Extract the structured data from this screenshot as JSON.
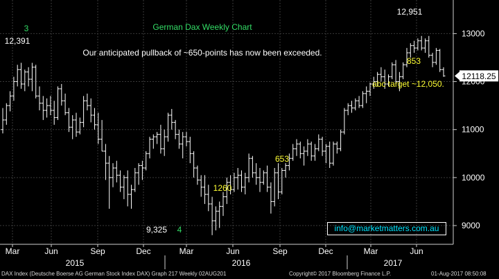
{
  "chart_data": {
    "type": "ohlc",
    "title": "German Dax Weekly Chart",
    "subtitle": "Our anticipated pullback of ~650-points has now been exceeded.",
    "ylim": [
      8400,
      13400
    ],
    "y_ticks": [
      9000,
      10000,
      11000,
      12000,
      13000
    ],
    "y_tick_labels": [
      "9000",
      "10000",
      "11000",
      "12000",
      "13000"
    ],
    "x_month_labels": [
      "Mar",
      "Jun",
      "Sep",
      "Dec",
      "Mar",
      "Jun",
      "Sep",
      "Dec",
      "Mar",
      "Jun"
    ],
    "x_year_labels": [
      "2015",
      "2016",
      "2017"
    ],
    "last_price": "12118.25",
    "grid": true,
    "bar_color": "#ffffff",
    "series": [
      {
        "values": [
          [
            11000,
            11450,
            10920,
            11200
          ],
          [
            11200,
            11550,
            11100,
            11500
          ],
          [
            11500,
            11800,
            11380,
            11700
          ],
          [
            11700,
            12100,
            11600,
            12000
          ],
          [
            12000,
            12350,
            11900,
            12250
          ],
          [
            12250,
            12391,
            11850,
            11950
          ],
          [
            11950,
            12250,
            11800,
            12200
          ],
          [
            12200,
            12300,
            11900,
            12050
          ],
          [
            12050,
            12391,
            11800,
            12300
          ],
          [
            12300,
            12350,
            11650,
            11700
          ],
          [
            11700,
            11900,
            11400,
            11550
          ],
          [
            11550,
            11700,
            11200,
            11400
          ],
          [
            11400,
            11650,
            11250,
            11500
          ],
          [
            11500,
            11700,
            11300,
            11400
          ],
          [
            11400,
            11600,
            11100,
            11250
          ],
          [
            11250,
            11900,
            11200,
            11850
          ],
          [
            11850,
            11950,
            11500,
            11600
          ],
          [
            11600,
            11750,
            11300,
            11350
          ],
          [
            11350,
            11450,
            10950,
            11050
          ],
          [
            11050,
            11300,
            10800,
            11200
          ],
          [
            11200,
            11350,
            10850,
            10950
          ],
          [
            10950,
            11250,
            10900,
            11150
          ],
          [
            11150,
            11700,
            11050,
            11600
          ],
          [
            11600,
            11750,
            11400,
            11500
          ],
          [
            11500,
            11650,
            11150,
            11300
          ],
          [
            11300,
            11450,
            11000,
            11100
          ],
          [
            11100,
            11350,
            10700,
            10800
          ],
          [
            10800,
            11200,
            10550,
            10550
          ],
          [
            10550,
            10700,
            9950,
            10300
          ],
          [
            10300,
            10450,
            9350,
            10000
          ],
          [
            10000,
            10300,
            9800,
            10200
          ],
          [
            10200,
            10350,
            9900,
            10050
          ],
          [
            10050,
            10150,
            9700,
            9800
          ],
          [
            9800,
            10050,
            9550,
            10000
          ],
          [
            10000,
            10150,
            9400,
            9650
          ],
          [
            9650,
            9850,
            9350,
            9750
          ],
          [
            9750,
            10200,
            9700,
            10100
          ],
          [
            10100,
            10300,
            9850,
            10250
          ],
          [
            10250,
            10350,
            9950,
            10200
          ],
          [
            10200,
            10550,
            10150,
            10500
          ],
          [
            10500,
            10850,
            10400,
            10800
          ],
          [
            10800,
            10900,
            10600,
            10850
          ],
          [
            10850,
            10950,
            10700,
            10900
          ],
          [
            10900,
            11100,
            10500,
            10600
          ],
          [
            10600,
            11000,
            10450,
            10850
          ],
          [
            10850,
            11350,
            10750,
            11300
          ],
          [
            11300,
            11430,
            11000,
            11150
          ],
          [
            11150,
            11200,
            10800,
            10900
          ],
          [
            10900,
            11000,
            10600,
            10700
          ],
          [
            10700,
            10950,
            10400,
            10850
          ],
          [
            10850,
            10950,
            10650,
            10750
          ],
          [
            10750,
            10850,
            10300,
            10500
          ],
          [
            10500,
            10550,
            10000,
            10200
          ],
          [
            10200,
            10250,
            9850,
            9950
          ],
          [
            9950,
            10050,
            9600,
            9800
          ],
          [
            9800,
            10050,
            9450,
            9650
          ],
          [
            9650,
            9850,
            9300,
            9450
          ],
          [
            9450,
            9600,
            8800,
            9100
          ],
          [
            9100,
            9400,
            8900,
            9300
          ],
          [
            9300,
            9500,
            8950,
            9400
          ],
          [
            9400,
            9700,
            9200,
            9600
          ],
          [
            9600,
            10000,
            9450,
            9900
          ],
          [
            9900,
            10050,
            9650,
            9750
          ],
          [
            9750,
            10100,
            9700,
            10000
          ],
          [
            10000,
            10200,
            9750,
            10050
          ],
          [
            10050,
            10150,
            9700,
            9800
          ],
          [
            9800,
            10100,
            9650,
            10000
          ],
          [
            10000,
            10500,
            9900,
            10400
          ],
          [
            10400,
            10450,
            10000,
            10100
          ],
          [
            10100,
            10300,
            9850,
            10000
          ],
          [
            10000,
            10200,
            9700,
            9900
          ],
          [
            9900,
            10150,
            9850,
            10100
          ],
          [
            10100,
            10250,
            9700,
            9800
          ],
          [
            9800,
            9900,
            9250,
            9500
          ],
          [
            9500,
            10200,
            9400,
            10100
          ],
          [
            10100,
            10300,
            9550,
            9700
          ],
          [
            9700,
            10200,
            9650,
            10150
          ],
          [
            10150,
            10300,
            10000,
            10250
          ],
          [
            10250,
            10500,
            10150,
            10400
          ],
          [
            10400,
            10700,
            10350,
            10600
          ],
          [
            10600,
            10800,
            10450,
            10700
          ],
          [
            10700,
            10750,
            10400,
            10500
          ],
          [
            10500,
            10650,
            10250,
            10550
          ],
          [
            10550,
            10800,
            10450,
            10700
          ],
          [
            10700,
            10750,
            10350,
            10450
          ],
          [
            10450,
            10700,
            10350,
            10600
          ],
          [
            10600,
            10900,
            10550,
            10800
          ],
          [
            10800,
            10850,
            10450,
            10550
          ],
          [
            10550,
            10700,
            10300,
            10650
          ],
          [
            10650,
            10750,
            10200,
            10300
          ],
          [
            10300,
            10750,
            10250,
            10700
          ],
          [
            10700,
            10750,
            10500,
            10600
          ],
          [
            10600,
            11000,
            10550,
            10950
          ],
          [
            10950,
            11450,
            10900,
            11400
          ],
          [
            11400,
            11550,
            11300,
            11500
          ],
          [
            11500,
            11600,
            11350,
            11450
          ],
          [
            11450,
            11650,
            11400,
            11600
          ],
          [
            11600,
            11700,
            11450,
            11500
          ],
          [
            11500,
            11800,
            11450,
            11750
          ],
          [
            11750,
            11900,
            11550,
            11800
          ],
          [
            11800,
            11980,
            11700,
            11950
          ],
          [
            11950,
            12100,
            11850,
            12000
          ],
          [
            12000,
            12200,
            11900,
            12150
          ],
          [
            12150,
            12300,
            12000,
            12100
          ],
          [
            12100,
            12250,
            11850,
            11950
          ],
          [
            11950,
            12150,
            11900,
            12100
          ],
          [
            12100,
            12400,
            12050,
            12350
          ],
          [
            12350,
            12450,
            11950,
            12000
          ],
          [
            12000,
            12200,
            11800,
            12100
          ],
          [
            12100,
            12400,
            12050,
            12350
          ],
          [
            12350,
            12700,
            12300,
            12600
          ],
          [
            12600,
            12800,
            12500,
            12750
          ],
          [
            12750,
            12850,
            12600,
            12700
          ],
          [
            12700,
            12900,
            12650,
            12850
          ],
          [
            12850,
            12951,
            12650,
            12700
          ],
          [
            12700,
            12900,
            12600,
            12850
          ],
          [
            12850,
            12951,
            12500,
            12550
          ],
          [
            12550,
            12600,
            12300,
            12400
          ],
          [
            12400,
            12700,
            12350,
            12650
          ],
          [
            12650,
            12680,
            12200,
            12250
          ],
          [
            12250,
            12300,
            12100,
            12118
          ]
        ]
      }
    ],
    "annotations": [
      {
        "text": "3",
        "color": "#33dd66"
      },
      {
        "text": "12,391",
        "color": "#ffffff"
      },
      {
        "text": "9,325",
        "color": "#ffffff"
      },
      {
        "text": "4",
        "color": "#33dd66"
      },
      {
        "text": "1260",
        "color": "#ffff33"
      },
      {
        "text": "653",
        "color": "#ffff33"
      },
      {
        "text": "12,951",
        "color": "#ffffff"
      },
      {
        "text": "853",
        "color": "#ffff33"
      },
      {
        "text": "abc target ~12,050.",
        "color": "#ffff33"
      }
    ],
    "info_box": "info@marketmatters.com.au"
  },
  "footer": {
    "left": "DAX Index (Deutsche Boerse AG German Stock Index DAX) Graph 217  Weekly 02AUG201",
    "middle": "Copyright© 2017 Bloomberg Finance L.P.",
    "right": "01-Aug-2017 08:50:08"
  }
}
